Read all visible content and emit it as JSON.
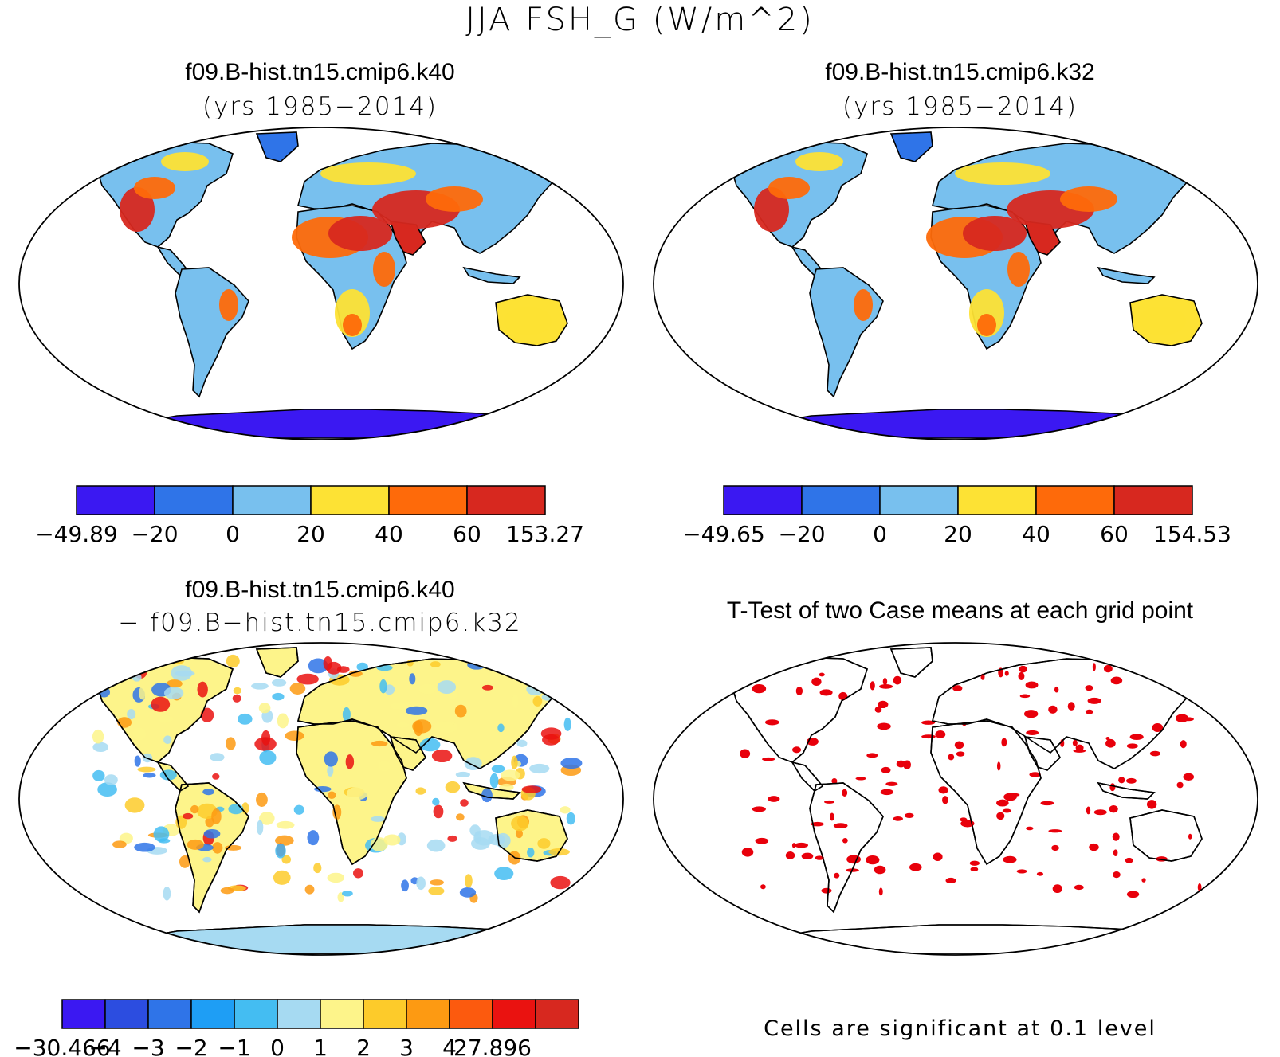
{
  "title": "JJA FSH_G (W/m^2)",
  "panels": [
    {
      "case": "f09.B-hist.tn15.cmip6.k40",
      "years": "(yrs 1985−2014)"
    },
    {
      "case": "f09.B-hist.tn15.cmip6.k32",
      "years": "(yrs 1985−2014)"
    },
    {
      "case": "f09.B-hist.tn15.cmip6.k40",
      "years": "− f09.B−hist.tn15.cmip6.k32"
    },
    {
      "case": "T-Test of two Case means at each grid point",
      "years": ""
    }
  ],
  "colorbars": [
    {
      "colors": [
        "#3b18f2",
        "#2f74e8",
        "#78c0ee",
        "#fde234",
        "#fe6a0a",
        "#d7281f"
      ],
      "labels": [
        "−49.89",
        "−20",
        "0",
        "20",
        "40",
        "60",
        "153.27"
      ]
    },
    {
      "colors": [
        "#3b18f2",
        "#2f74e8",
        "#78c0ee",
        "#fde234",
        "#fe6a0a",
        "#d7281f"
      ],
      "labels": [
        "−49.65",
        "−20",
        "0",
        "20",
        "40",
        "60",
        "154.53"
      ]
    },
    {
      "colors": [
        "#3b18f2",
        "#2c4de0",
        "#2f74e8",
        "#1e9ef5",
        "#44bdf2",
        "#a6daf2",
        "#fdf48a",
        "#fdcb2a",
        "#fd9a12",
        "#fc5a0e",
        "#ea1210",
        "#d7281f"
      ],
      "labels": [
        "−30.466",
        "−4",
        "−3",
        "−2",
        "−1",
        "0",
        "1",
        "2",
        "3",
        "4",
        "27.896"
      ]
    }
  ],
  "significance_note": "Cells are significant at 0.1 level",
  "map_colors": {
    "neg_strong": "#3b18f2",
    "neg": "#2f74e8",
    "low": "#78c0ee",
    "mid": "#fde234",
    "high": "#fe6a0a",
    "very_high": "#d7281f",
    "significant": "#e8000b"
  }
}
